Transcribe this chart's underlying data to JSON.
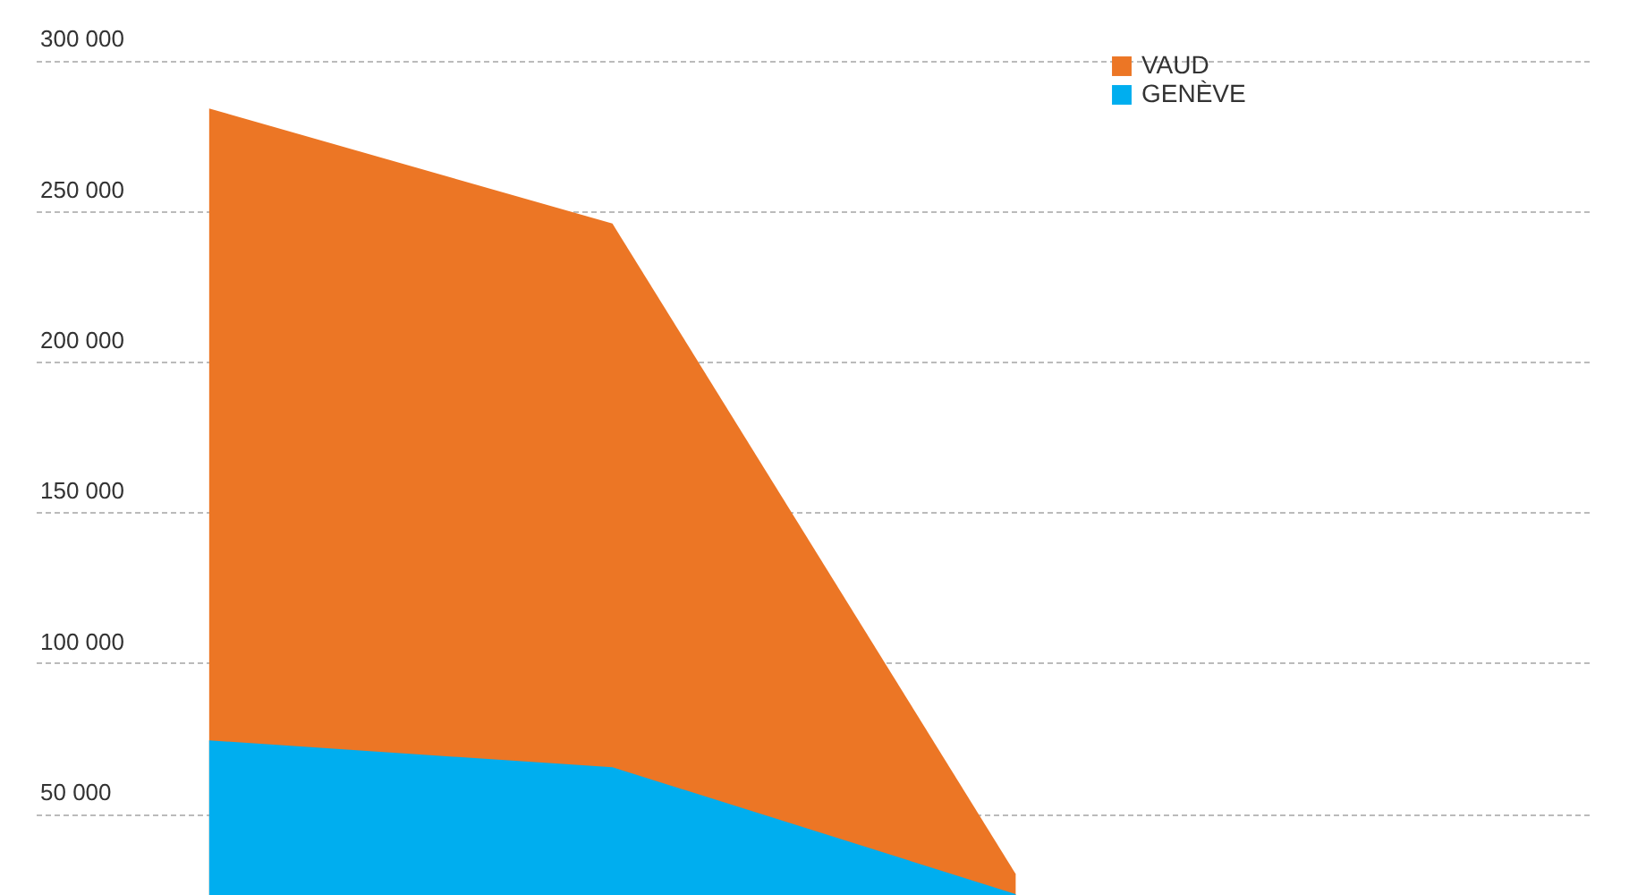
{
  "chart_data": {
    "type": "area",
    "categories": [
      null,
      null,
      null,
      null
    ],
    "series": [
      {
        "name": "VAUD",
        "color": "#ec7625",
        "values": [
          284000,
          245800,
          30000,
          null
        ]
      },
      {
        "name": "GENÈVE",
        "color": "#00aeef",
        "values": [
          74300,
          65400,
          23300,
          null
        ]
      }
    ],
    "ylim": [
      23000,
      320000
    ],
    "yticks": [
      50000,
      100000,
      150000,
      200000,
      250000,
      300000
    ],
    "grid": "y",
    "legend": "top right",
    "tick_labels": "y"
  }
}
